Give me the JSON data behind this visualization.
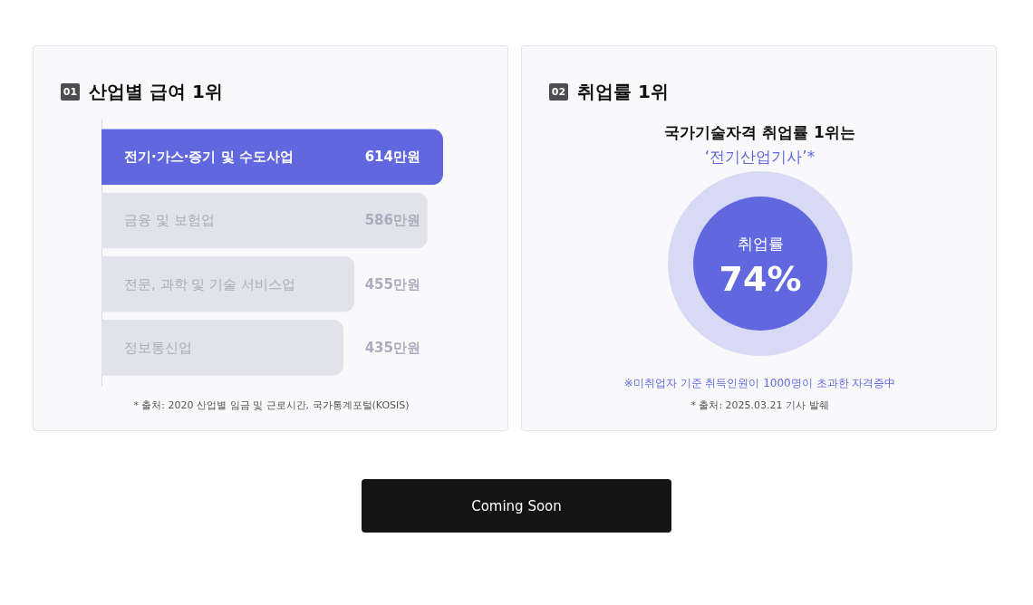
{
  "chart_data": [
    {
      "type": "bar",
      "orientation": "horizontal",
      "title": "산업별 급여 1위",
      "categories": [
        "전기·가스·증기 및 수도사업",
        "금융 및 보험업",
        "전문, 과학 및 기술 서비스업",
        "정보통신업"
      ],
      "values": [
        614,
        586,
        455,
        435
      ],
      "value_labels": [
        "614만원",
        "586만원",
        "455만원",
        "435만원"
      ],
      "colors": [
        "#6168df",
        "#e2e2ea",
        "#e2e2ea",
        "#e2e2ea"
      ],
      "annotations": [
        "01",
        "* 출처: 2020 산업별 임금 및 근로시간, 국가통계포털(KOSIS)"
      ]
    },
    {
      "type": "other",
      "title": "취업률 1위",
      "subtitle": "국가기술자격 취업률 1위는",
      "categories": [
        "취업률"
      ],
      "values": [
        74
      ],
      "value_labels": [
        "74%"
      ],
      "color": "#6168df",
      "annotations": [
        "02",
        "‘전기산업기사’*",
        "※미취업자 기준 취득인원이 1000명이 초과한 자격증中",
        "* 출처: 2025.03.21 기사 발췌"
      ]
    },
    {
      "type": "other",
      "annotations": [
        "Coming Soon"
      ]
    }
  ]
}
